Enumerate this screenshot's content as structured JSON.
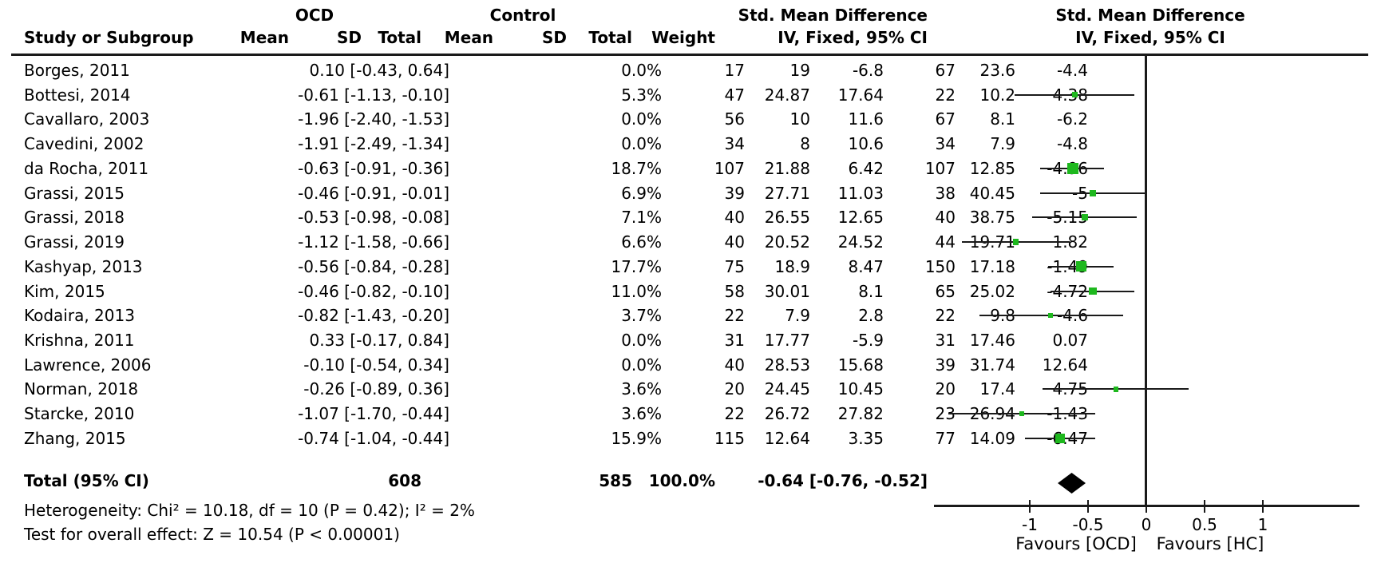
{
  "colors": {
    "marker_green": "#1eb81e",
    "line_black": "#1a1a1a",
    "diamond_black": "#000000"
  },
  "headers": {
    "study_col": "Study or Subgroup",
    "group_ocd": "OCD",
    "group_control": "Control",
    "mean": "Mean",
    "sd": "SD",
    "total": "Total",
    "weight": "Weight",
    "smd_title": "Std. Mean Difference",
    "smd_method": "IV, Fixed, 95% CI"
  },
  "totals": {
    "label": "Total (95% CI)",
    "ocd_total": "608",
    "control_total": "585",
    "weight": "100.0%",
    "ci_text": "-0.64 [-0.76, -0.52]",
    "est": -0.64,
    "lo": -0.76,
    "hi": -0.52
  },
  "footnotes": {
    "heterogeneity": "Heterogeneity: Chi² = 10.18, df = 10 (P = 0.42); I² = 2%",
    "overall_test": "Test for overall effect: Z = 10.54 (P < 0.00001)"
  },
  "chart_data": {
    "type": "forest",
    "title": "Std. Mean Difference",
    "subtitle": "IV, Fixed, 95% CI",
    "xlim": [
      -1.82,
      1.83
    ],
    "x_ticks": [
      -1,
      -0.5,
      0,
      0.5,
      1
    ],
    "x_tick_labels": [
      "-1",
      "-0.5",
      "0",
      "0.5",
      "1"
    ],
    "favours_left": "Favours [OCD]",
    "favours_right": "Favours [HC]",
    "studies": [
      {
        "name": "Borges, 2011",
        "ocd_mean": "-4.4",
        "ocd_sd": "23.6",
        "ocd_total": "67",
        "ctl_mean": "-6.8",
        "ctl_sd": "19",
        "ctl_total": "17",
        "weight": "0.0%",
        "w": 0.0,
        "ci_text": "0.10 [-0.43, 0.64]",
        "est": 0.1,
        "lo": -0.43,
        "hi": 0.64,
        "plotted": false
      },
      {
        "name": "Bottesi, 2014",
        "ocd_mean": "4.38",
        "ocd_sd": "10.2",
        "ocd_total": "22",
        "ctl_mean": "17.64",
        "ctl_sd": "24.87",
        "ctl_total": "47",
        "weight": "5.3%",
        "w": 5.3,
        "ci_text": "-0.61 [-1.13, -0.10]",
        "est": -0.61,
        "lo": -1.13,
        "hi": -0.1,
        "plotted": true
      },
      {
        "name": "Cavallaro, 2003",
        "ocd_mean": "-6.2",
        "ocd_sd": "8.1",
        "ocd_total": "67",
        "ctl_mean": "11.6",
        "ctl_sd": "10",
        "ctl_total": "56",
        "weight": "0.0%",
        "w": 0.0,
        "ci_text": "-1.96 [-2.40, -1.53]",
        "est": -1.96,
        "lo": -2.4,
        "hi": -1.53,
        "plotted": false
      },
      {
        "name": "Cavedini, 2002",
        "ocd_mean": "-4.8",
        "ocd_sd": "7.9",
        "ocd_total": "34",
        "ctl_mean": "10.6",
        "ctl_sd": "8",
        "ctl_total": "34",
        "weight": "0.0%",
        "w": 0.0,
        "ci_text": "-1.91 [-2.49, -1.34]",
        "est": -1.91,
        "lo": -2.49,
        "hi": -1.34,
        "plotted": false
      },
      {
        "name": "da Rocha, 2011",
        "ocd_mean": "-4.96",
        "ocd_sd": "12.85",
        "ocd_total": "107",
        "ctl_mean": "6.42",
        "ctl_sd": "21.88",
        "ctl_total": "107",
        "weight": "18.7%",
        "w": 18.7,
        "ci_text": "-0.63 [-0.91, -0.36]",
        "est": -0.63,
        "lo": -0.91,
        "hi": -0.36,
        "plotted": true
      },
      {
        "name": "Grassi, 2015",
        "ocd_mean": "-5",
        "ocd_sd": "40.45",
        "ocd_total": "38",
        "ctl_mean": "11.03",
        "ctl_sd": "27.71",
        "ctl_total": "39",
        "weight": "6.9%",
        "w": 6.9,
        "ci_text": "-0.46 [-0.91, -0.01]",
        "est": -0.46,
        "lo": -0.91,
        "hi": -0.01,
        "plotted": true
      },
      {
        "name": "Grassi, 2018",
        "ocd_mean": "-5.15",
        "ocd_sd": "38.75",
        "ocd_total": "40",
        "ctl_mean": "12.65",
        "ctl_sd": "26.55",
        "ctl_total": "40",
        "weight": "7.1%",
        "w": 7.1,
        "ci_text": "-0.53 [-0.98, -0.08]",
        "est": -0.53,
        "lo": -0.98,
        "hi": -0.08,
        "plotted": true
      },
      {
        "name": "Grassi, 2019",
        "ocd_mean": "1.82",
        "ocd_sd": "19.71",
        "ocd_total": "44",
        "ctl_mean": "24.52",
        "ctl_sd": "20.52",
        "ctl_total": "40",
        "weight": "6.6%",
        "w": 6.6,
        "ci_text": "-1.12 [-1.58, -0.66]",
        "est": -1.12,
        "lo": -1.58,
        "hi": -0.66,
        "plotted": true
      },
      {
        "name": "Kashyap, 2013",
        "ocd_mean": "-1.49",
        "ocd_sd": "17.18",
        "ocd_total": "150",
        "ctl_mean": "8.47",
        "ctl_sd": "18.9",
        "ctl_total": "75",
        "weight": "17.7%",
        "w": 17.7,
        "ci_text": "-0.56 [-0.84, -0.28]",
        "est": -0.56,
        "lo": -0.84,
        "hi": -0.28,
        "plotted": true
      },
      {
        "name": "Kim, 2015",
        "ocd_mean": "-4.72",
        "ocd_sd": "25.02",
        "ocd_total": "65",
        "ctl_mean": "8.1",
        "ctl_sd": "30.01",
        "ctl_total": "58",
        "weight": "11.0%",
        "w": 11.0,
        "ci_text": "-0.46 [-0.82, -0.10]",
        "est": -0.46,
        "lo": -0.82,
        "hi": -0.1,
        "plotted": true
      },
      {
        "name": "Kodaira, 2013",
        "ocd_mean": "-4.6",
        "ocd_sd": "9.8",
        "ocd_total": "22",
        "ctl_mean": "2.8",
        "ctl_sd": "7.9",
        "ctl_total": "22",
        "weight": "3.7%",
        "w": 3.7,
        "ci_text": "-0.82 [-1.43, -0.20]",
        "est": -0.82,
        "lo": -1.43,
        "hi": -0.2,
        "plotted": true
      },
      {
        "name": "Krishna, 2011",
        "ocd_mean": "0.07",
        "ocd_sd": "17.46",
        "ocd_total": "31",
        "ctl_mean": "-5.9",
        "ctl_sd": "17.77",
        "ctl_total": "31",
        "weight": "0.0%",
        "w": 0.0,
        "ci_text": "0.33 [-0.17, 0.84]",
        "est": 0.33,
        "lo": -0.17,
        "hi": 0.84,
        "plotted": false
      },
      {
        "name": "Lawrence, 2006",
        "ocd_mean": "12.64",
        "ocd_sd": "31.74",
        "ocd_total": "39",
        "ctl_mean": "15.68",
        "ctl_sd": "28.53",
        "ctl_total": "40",
        "weight": "0.0%",
        "w": 0.0,
        "ci_text": "-0.10 [-0.54, 0.34]",
        "est": -0.1,
        "lo": -0.54,
        "hi": 0.34,
        "plotted": false
      },
      {
        "name": "Norman, 2018",
        "ocd_mean": "4.75",
        "ocd_sd": "17.4",
        "ocd_total": "20",
        "ctl_mean": "10.45",
        "ctl_sd": "24.45",
        "ctl_total": "20",
        "weight": "3.6%",
        "w": 3.6,
        "ci_text": "-0.26 [-0.89, 0.36]",
        "est": -0.26,
        "lo": -0.89,
        "hi": 0.36,
        "plotted": true
      },
      {
        "name": "Starcke, 2010",
        "ocd_mean": "-1.43",
        "ocd_sd": "26.94",
        "ocd_total": "23",
        "ctl_mean": "27.82",
        "ctl_sd": "26.72",
        "ctl_total": "22",
        "weight": "3.6%",
        "w": 3.6,
        "ci_text": "-1.07 [-1.70, -0.44]",
        "est": -1.07,
        "lo": -1.7,
        "hi": -0.44,
        "plotted": true
      },
      {
        "name": "Zhang, 2015",
        "ocd_mean": "-6.47",
        "ocd_sd": "14.09",
        "ocd_total": "77",
        "ctl_mean": "3.35",
        "ctl_sd": "12.64",
        "ctl_total": "115",
        "weight": "15.9%",
        "w": 15.9,
        "ci_text": "-0.74 [-1.04, -0.44]",
        "est": -0.74,
        "lo": -1.04,
        "hi": -0.44,
        "plotted": true
      }
    ],
    "total": {
      "label": "Total (95% CI)",
      "est": -0.64,
      "lo": -0.76,
      "hi": -0.52,
      "weight": "100.0%"
    },
    "heterogeneity": "Heterogeneity: Chi² = 10.18, df = 10 (P = 0.42); I² = 2%",
    "overall_effect": "Test for overall effect: Z = 10.54 (P < 0.00001)"
  }
}
